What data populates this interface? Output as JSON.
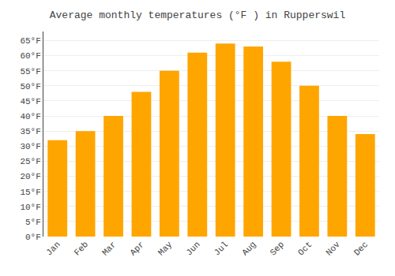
{
  "chart_data": {
    "type": "bar",
    "title": "Average monthly temperatures (°F ) in Rupperswil",
    "categories": [
      "Jan",
      "Feb",
      "Mar",
      "Apr",
      "May",
      "Jun",
      "Jul",
      "Aug",
      "Sep",
      "Oct",
      "Nov",
      "Dec"
    ],
    "values": [
      32,
      35,
      40,
      48,
      55,
      61,
      64,
      63,
      58,
      50,
      40,
      34
    ],
    "color": "#FFA500",
    "ylim": [
      0,
      68
    ],
    "yticks": [
      {
        "value": 0,
        "label": "0°F"
      },
      {
        "value": 5,
        "label": "5°F"
      },
      {
        "value": 10,
        "label": "10°F"
      },
      {
        "value": 15,
        "label": "15°F"
      },
      {
        "value": 20,
        "label": "20°F"
      },
      {
        "value": 25,
        "label": "25°F"
      },
      {
        "value": 30,
        "label": "30°F"
      },
      {
        "value": 35,
        "label": "35°F"
      },
      {
        "value": 40,
        "label": "40°F"
      },
      {
        "value": 45,
        "label": "45°F"
      },
      {
        "value": 50,
        "label": "50°F"
      },
      {
        "value": 55,
        "label": "55°F"
      },
      {
        "value": 60,
        "label": "60°F"
      },
      {
        "value": 65,
        "label": "65°F"
      }
    ],
    "grid": true
  }
}
